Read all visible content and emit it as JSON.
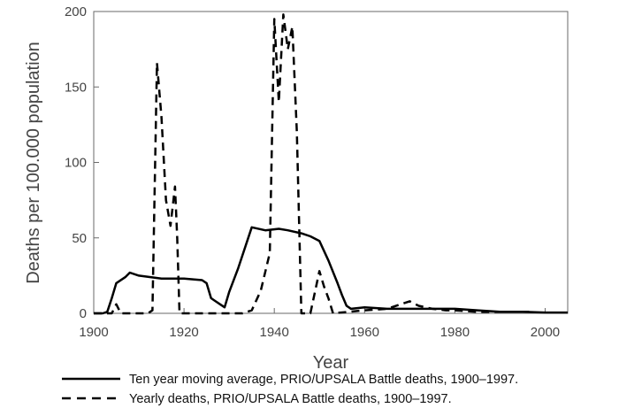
{
  "chart_data": {
    "type": "line",
    "title": "",
    "xlabel": "Year",
    "ylabel": "Deaths per 100.000 population",
    "xlim": [
      1900,
      2005
    ],
    "ylim": [
      0,
      200
    ],
    "x_ticks": [
      1900,
      1920,
      1940,
      1960,
      1980,
      2000
    ],
    "y_ticks": [
      0,
      50,
      100,
      150,
      200
    ],
    "grid": false,
    "legend_position": "bottom",
    "series": [
      {
        "name": "Ten year moving average, PRIO/UPSALA Battle deaths, 1900–1997.",
        "style": "solid",
        "color": "#000000",
        "points": [
          [
            1900,
            0
          ],
          [
            1902,
            0
          ],
          [
            1903,
            1
          ],
          [
            1904,
            10
          ],
          [
            1905,
            20
          ],
          [
            1907,
            24
          ],
          [
            1908,
            27
          ],
          [
            1910,
            25
          ],
          [
            1915,
            23
          ],
          [
            1920,
            23
          ],
          [
            1924,
            22
          ],
          [
            1925,
            20
          ],
          [
            1926,
            10
          ],
          [
            1927,
            8
          ],
          [
            1928,
            6
          ],
          [
            1929,
            4
          ],
          [
            1930,
            14
          ],
          [
            1932,
            30
          ],
          [
            1934,
            48
          ],
          [
            1935,
            57
          ],
          [
            1938,
            55
          ],
          [
            1941,
            56
          ],
          [
            1943,
            55
          ],
          [
            1946,
            53
          ],
          [
            1948,
            51
          ],
          [
            1950,
            48
          ],
          [
            1952,
            35
          ],
          [
            1954,
            20
          ],
          [
            1955,
            12
          ],
          [
            1956,
            5
          ],
          [
            1957,
            3
          ],
          [
            1960,
            4
          ],
          [
            1965,
            3
          ],
          [
            1970,
            3
          ],
          [
            1975,
            3
          ],
          [
            1980,
            3
          ],
          [
            1985,
            2
          ],
          [
            1990,
            1
          ],
          [
            1995,
            1
          ],
          [
            2000,
            0.5
          ],
          [
            2005,
            0.5
          ]
        ]
      },
      {
        "name": "Yearly deaths, PRIO/UPSALA Battle deaths, 1900–1997.",
        "style": "dashed",
        "color": "#000000",
        "points": [
          [
            1900,
            0
          ],
          [
            1904,
            0
          ],
          [
            1905,
            6
          ],
          [
            1906,
            0
          ],
          [
            1912,
            0
          ],
          [
            1913,
            2
          ],
          [
            1914,
            166
          ],
          [
            1915,
            130
          ],
          [
            1916,
            75
          ],
          [
            1917,
            58
          ],
          [
            1918,
            84
          ],
          [
            1918.5,
            50
          ],
          [
            1919,
            0
          ],
          [
            1933,
            0
          ],
          [
            1935,
            2
          ],
          [
            1937,
            15
          ],
          [
            1939,
            40
          ],
          [
            1940,
            195
          ],
          [
            1941,
            140
          ],
          [
            1942,
            198
          ],
          [
            1943,
            175
          ],
          [
            1944,
            190
          ],
          [
            1945,
            120
          ],
          [
            1946,
            0
          ],
          [
            1948,
            0
          ],
          [
            1950,
            28
          ],
          [
            1951,
            18
          ],
          [
            1952,
            10
          ],
          [
            1953,
            0
          ],
          [
            1960,
            2
          ],
          [
            1965,
            3
          ],
          [
            1968,
            6
          ],
          [
            1970,
            8
          ],
          [
            1972,
            5
          ],
          [
            1975,
            3
          ],
          [
            1978,
            2
          ],
          [
            1980,
            2
          ],
          [
            1985,
            1
          ],
          [
            1990,
            1
          ],
          [
            1997,
            1
          ]
        ]
      }
    ]
  }
}
